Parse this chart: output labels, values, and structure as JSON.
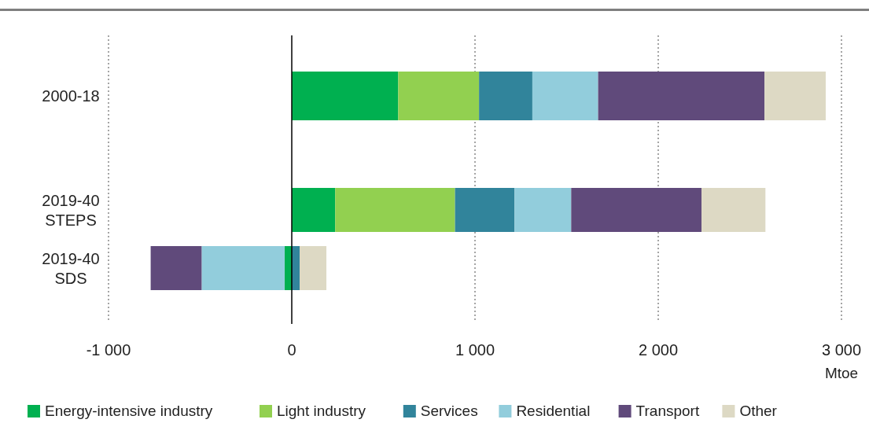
{
  "chart_data": {
    "type": "bar",
    "orientation": "horizontal",
    "stacked": true,
    "categories": [
      "2000-18",
      "2019-40 STEPS",
      "2019-40 SDS"
    ],
    "series": [
      {
        "name": "Energy-intensive industry",
        "color": "#00b050",
        "values": [
          581,
          237,
          -39
        ]
      },
      {
        "name": "Light industry",
        "color": "#92d050",
        "values": [
          441,
          654,
          0
        ]
      },
      {
        "name": "Services",
        "color": "#31849b",
        "values": [
          291,
          325,
          43
        ]
      },
      {
        "name": "Residential",
        "color": "#92cddc",
        "values": [
          359,
          309,
          -453
        ]
      },
      {
        "name": "Transport",
        "color": "#604a7b",
        "values": [
          908,
          711,
          -278
        ]
      },
      {
        "name": "Other",
        "color": "#ddd9c4",
        "values": [
          334,
          349,
          146
        ]
      }
    ],
    "xlim": [
      -1000,
      3000
    ],
    "xticks": [
      {
        "value": -1000,
        "label": "-1 000"
      },
      0,
      {
        "value": 1000,
        "label": "1 000"
      },
      {
        "value": 2000,
        "label": "2 000"
      },
      {
        "value": 3000,
        "label": "3 000"
      }
    ],
    "xlabel": "Mtoe",
    "grid": "x",
    "legend": "bottom"
  }
}
